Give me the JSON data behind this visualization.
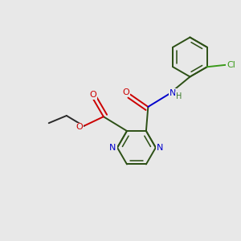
{
  "background_color": "#e8e8e8",
  "bond_color_dark": "#2a2a2a",
  "bond_color_ring": "#2d5016",
  "bond_width": 1.4,
  "atom_colors": {
    "O": "#cc0000",
    "N": "#0000cc",
    "Cl": "#3a9a1a",
    "C": "#2a2a2a",
    "H": "#3a7a2a"
  },
  "figsize": [
    3.0,
    3.0
  ],
  "dpi": 100
}
